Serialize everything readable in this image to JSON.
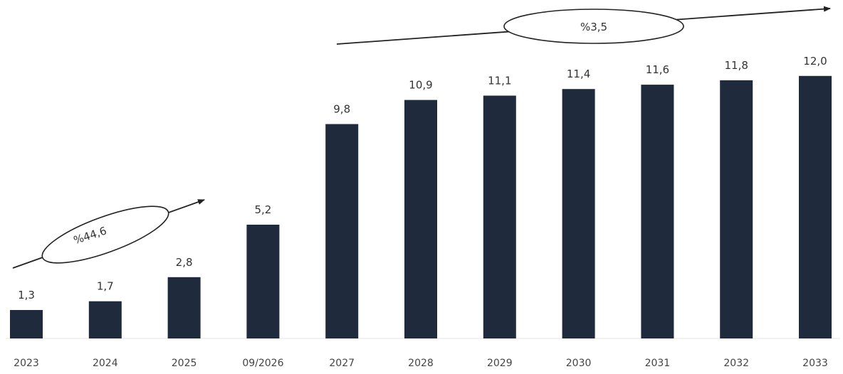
{
  "chart_data": {
    "type": "bar",
    "categories": [
      "2023",
      "2024",
      "2025",
      "09/2026",
      "2027",
      "2028",
      "2029",
      "2030",
      "2031",
      "2032",
      "2033"
    ],
    "values": [
      1.3,
      1.7,
      2.8,
      5.2,
      9.8,
      10.9,
      11.1,
      11.4,
      11.6,
      11.8,
      12.0
    ],
    "value_labels": [
      "1,3",
      "1,7",
      "2,8",
      "5,2",
      "9,8",
      "10,9",
      "11,1",
      "11,4",
      "11,6",
      "11,8",
      "12,0"
    ],
    "ylim": [
      0,
      13
    ],
    "grid": false,
    "bar_color": "#1f2a3c",
    "annotations": [
      {
        "label": "%44,6",
        "from_category": "2023",
        "to_category": "2025"
      },
      {
        "label": "%3,5",
        "from_category": "2027",
        "to_category": "2033"
      }
    ]
  }
}
